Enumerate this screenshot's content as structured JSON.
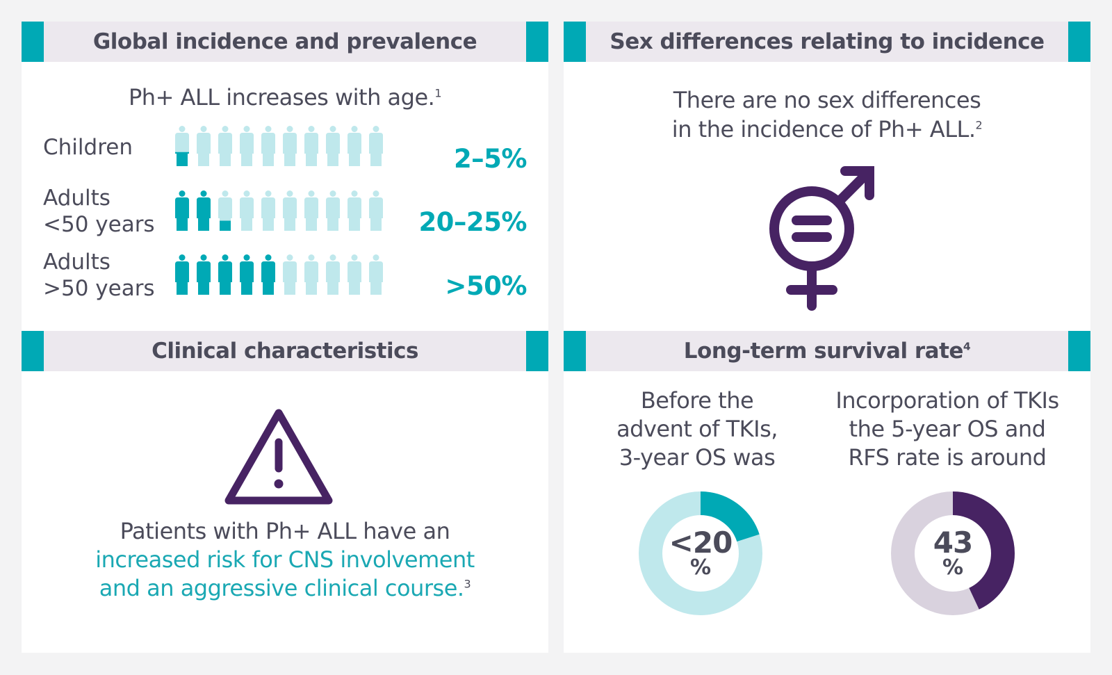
{
  "colors": {
    "teal": "#00a9b5",
    "light_teal": "#bfe8ec",
    "purple": "#472363",
    "light_purple": "#d9d2de",
    "header_bg": "#ece8ee",
    "text": "#4b4b5a"
  },
  "incidence": {
    "title": "Global incidence and prevalence",
    "lead": "Ph+ ALL increases with age.",
    "lead_ref": "1",
    "rows": [
      {
        "label_line1": "Children",
        "label_line2": "",
        "value": "2–5%",
        "filled_fraction": 0.035
      },
      {
        "label_line1": "Adults",
        "label_line2": "<50 years",
        "value": "20–25%",
        "filled_fraction": 0.225
      },
      {
        "label_line1": "Adults",
        "label_line2": ">50 years",
        "value": ">50%",
        "filled_fraction": 0.5
      }
    ],
    "icon": "person-icon",
    "icon_count": 10
  },
  "sex": {
    "title": "Sex differences relating to incidence",
    "line1": "There are no sex differences",
    "line2": "in the incidence of Ph+ ALL.",
    "ref": "2",
    "icon": "gender-equality-icon"
  },
  "clinical": {
    "title": "Clinical characteristics",
    "icon": "warning-icon",
    "line1": "Patients with Ph+ ALL have an",
    "line2": "increased risk for CNS involvement",
    "line3": "and an aggressive clinical course.",
    "ref": "3"
  },
  "survival": {
    "title": "Long-term survival rate",
    "title_ref": "4",
    "left": {
      "line1": "Before the",
      "line2": "advent of TKIs,",
      "line3": "3-year OS was",
      "value": "<20",
      "unit": "%",
      "fraction": 0.2
    },
    "right": {
      "line1": "Incorporation of TKIs",
      "line2": "the 5-year OS and",
      "line3": "RFS rate is around",
      "value": "43",
      "unit": "%",
      "fraction": 0.43
    }
  }
}
